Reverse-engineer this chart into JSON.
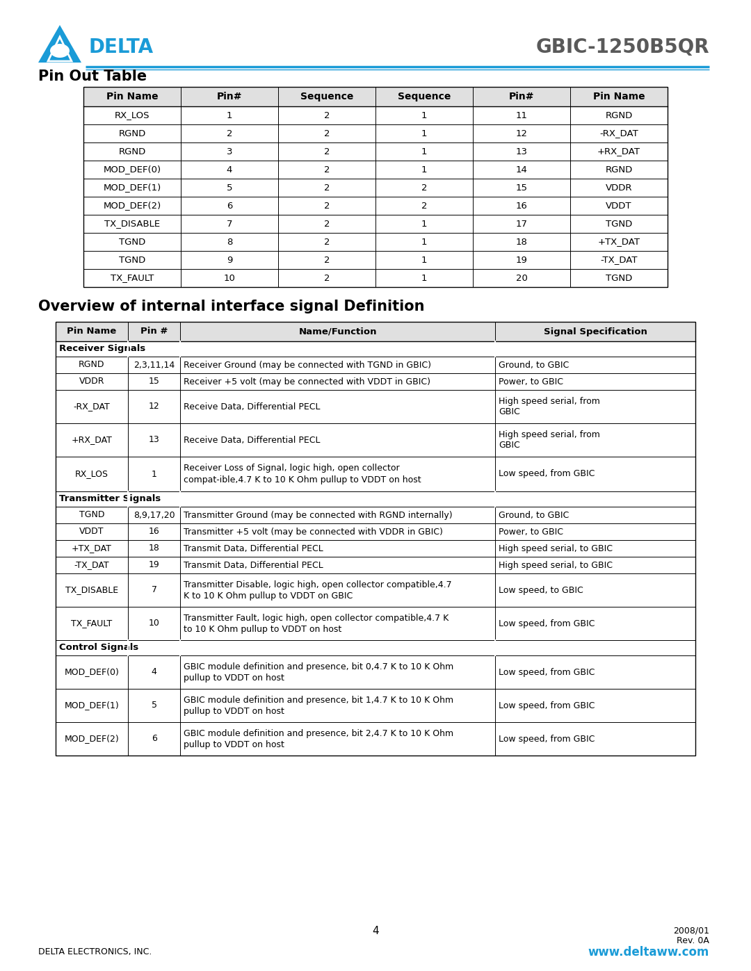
{
  "title": "GBIC-1250B5QR",
  "company": "DELTA ELECTRONICS, INC.",
  "website": "www.deltaww.com",
  "page_num": "4",
  "date": "2008/01\nRev. 0A",
  "header_color": "#1a9bd7",
  "pin_out_title": "Pin Out Table",
  "pin_out_headers": [
    "Pin Name",
    "Pin#",
    "Sequence",
    "Sequence",
    "Pin#",
    "Pin Name"
  ],
  "pin_out_rows": [
    [
      "RX_LOS",
      "1",
      "2",
      "1",
      "11",
      "RGND"
    ],
    [
      "RGND",
      "2",
      "2",
      "1",
      "12",
      "-RX_DAT"
    ],
    [
      "RGND",
      "3",
      "2",
      "1",
      "13",
      "+RX_DAT"
    ],
    [
      "MOD_DEF(0)",
      "4",
      "2",
      "1",
      "14",
      "RGND"
    ],
    [
      "MOD_DEF(1)",
      "5",
      "2",
      "2",
      "15",
      "VDDR"
    ],
    [
      "MOD_DEF(2)",
      "6",
      "2",
      "2",
      "16",
      "VDDT"
    ],
    [
      "TX_DISABLE",
      "7",
      "2",
      "1",
      "17",
      "TGND"
    ],
    [
      "TGND",
      "8",
      "2",
      "1",
      "18",
      "+TX_DAT"
    ],
    [
      "TGND",
      "9",
      "2",
      "1",
      "19",
      "-TX_DAT"
    ],
    [
      "TX_FAULT",
      "10",
      "2",
      "1",
      "20",
      "TGND"
    ]
  ],
  "overview_title": "Overview of internal interface signal Definition",
  "overview_headers": [
    "Pin Name",
    "Pin #",
    "Name/Function",
    "Signal Specification"
  ],
  "overview_rows": [
    {
      "section": "Receiver Signals",
      "rows": [
        [
          "RGND",
          "2,3,11,14",
          "Receiver Ground (may be connected with TGND in GBIC)",
          "Ground, to GBIC"
        ],
        [
          "VDDR",
          "15",
          "Receiver +5 volt (may be connected with VDDT in GBIC)",
          "Power, to GBIC"
        ],
        [
          "-RX_DAT",
          "12",
          "Receive Data, Differential PECL",
          "High speed serial, from\nGBIC"
        ],
        [
          "+RX_DAT",
          "13",
          "Receive Data, Differential PECL",
          "High speed serial, from\nGBIC"
        ],
        [
          "RX_LOS",
          "1",
          "Receiver Loss of Signal, logic high, open collector\ncompat-ible,4.7 K to 10 K Ohm pullup to VDDT on host",
          "Low speed, from GBIC"
        ]
      ]
    },
    {
      "section": "Transmitter Signals",
      "rows": [
        [
          "TGND",
          "8,9,17,20",
          "Transmitter Ground (may be connected with RGND internally)",
          "Ground, to GBIC"
        ],
        [
          "VDDT",
          "16",
          "Transmitter +5 volt (may be connected with VDDR in GBIC)",
          "Power, to GBIC"
        ],
        [
          "+TX_DAT",
          "18",
          "Transmit Data, Differential PECL",
          "High speed serial, to GBIC"
        ],
        [
          "-TX_DAT",
          "19",
          "Transmit Data, Differential PECL",
          "High speed serial, to GBIC"
        ],
        [
          "TX_DISABLE",
          "7",
          "Transmitter Disable, logic high, open collector compatible,4.7\nK to 10 K Ohm pullup to VDDT on GBIC",
          "Low speed, to GBIC"
        ],
        [
          "TX_FAULT",
          "10",
          "Transmitter Fault, logic high, open collector compatible,4.7 K\nto 10 K Ohm pullup to VDDT on host",
          "Low speed, from GBIC"
        ]
      ]
    },
    {
      "section": "Control Signals",
      "rows": [
        [
          "MOD_DEF(0)",
          "4",
          "GBIC module definition and presence, bit 0,4.7 K to 10 K Ohm\npullup to VDDT on host",
          "Low speed, from GBIC"
        ],
        [
          "MOD_DEF(1)",
          "5",
          "GBIC module definition and presence, bit 1,4.7 K to 10 K Ohm\npullup to VDDT on host",
          "Low speed, from GBIC"
        ],
        [
          "MOD_DEF(2)",
          "6",
          "GBIC module definition and presence, bit 2,4.7 K to 10 K Ohm\npullup to VDDT on host",
          "Low speed, from GBIC"
        ]
      ]
    }
  ]
}
